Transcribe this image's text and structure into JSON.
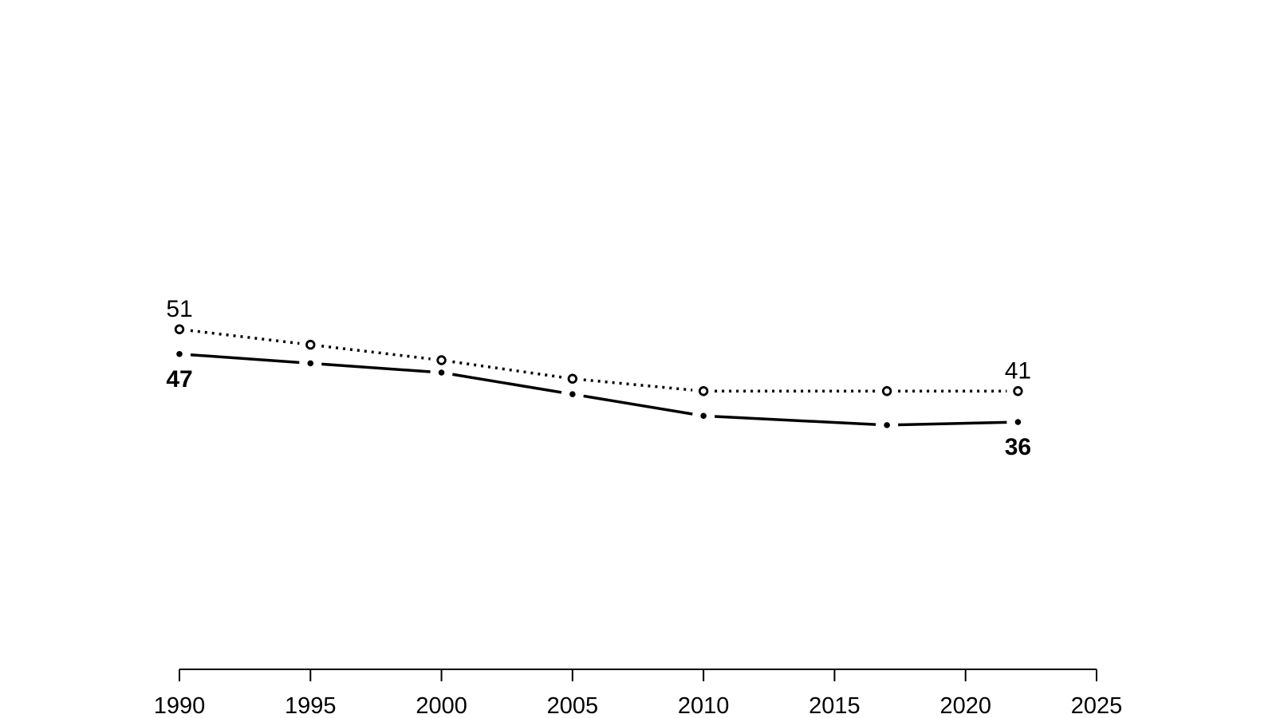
{
  "page": {
    "background_color": "#ffffff",
    "foreground_color": "#000000"
  },
  "chart_data": {
    "type": "line",
    "title": "",
    "xlabel": "",
    "ylabel": "",
    "grid": false,
    "legend_position": "none",
    "x": [
      1990,
      1995,
      2000,
      2005,
      2010,
      2017,
      2022
    ],
    "series": [
      {
        "name": "upper-series",
        "line_style": "dotted",
        "marker": "open-circle",
        "color": "#000000",
        "values": [
          51,
          48.5,
          46,
          43,
          41,
          41,
          41
        ]
      },
      {
        "name": "lower-series",
        "line_style": "solid",
        "marker": "filled-dot",
        "color": "#000000",
        "values": [
          47,
          45.5,
          44,
          40.5,
          37,
          35.5,
          36
        ]
      }
    ],
    "annotations": [
      {
        "text": "51",
        "series": 0,
        "point": 0,
        "position": "above",
        "bold": false
      },
      {
        "text": "47",
        "series": 1,
        "point": 0,
        "position": "below",
        "bold": true
      },
      {
        "text": "41",
        "series": 0,
        "point": 6,
        "position": "above",
        "bold": false
      },
      {
        "text": "36",
        "series": 1,
        "point": 6,
        "position": "below",
        "bold": true
      }
    ],
    "x_axis": {
      "tick_labels": [
        "1990",
        "1995",
        "2000",
        "2005",
        "2010",
        "2015",
        "2020",
        "2025"
      ],
      "ticks": [
        1990,
        1995,
        2000,
        2005,
        2010,
        2015,
        2020,
        2025
      ],
      "range": [
        1990,
        2025
      ]
    },
    "y_axis": {
      "visible": false,
      "approx_range": [
        30,
        55
      ]
    }
  }
}
